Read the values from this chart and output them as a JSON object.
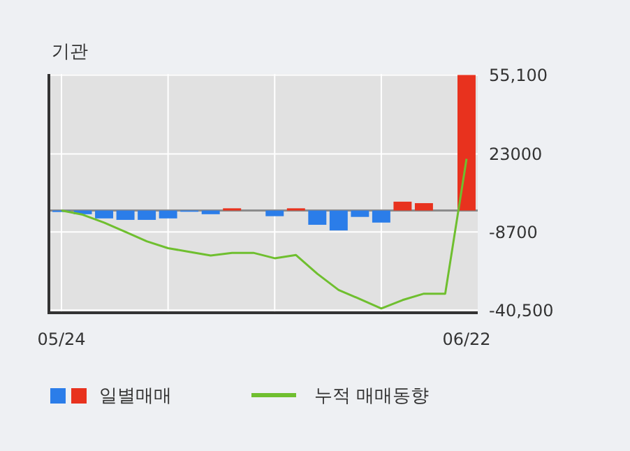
{
  "chart_data": {
    "type": "bar",
    "title": "기관",
    "categories": [
      "05/24",
      null,
      null,
      null,
      null,
      null,
      null,
      null,
      null,
      null,
      null,
      null,
      null,
      null,
      null,
      null,
      null,
      null,
      null,
      "06/22"
    ],
    "series": [
      {
        "name": "일별매매",
        "colors": [
          "#2b7de9",
          "#2b7de9",
          "#2b7de9",
          "#2b7de9",
          "#2b7de9",
          "#2b7de9",
          "#2b7de9",
          "#2b7de9",
          "#e8321e",
          "#2b7de9",
          "#2b7de9",
          "#e8321e",
          "#2b7de9",
          "#2b7de9",
          "#2b7de9",
          "#2b7de9",
          "#e8321e",
          "#e8321e",
          "#2b7de9",
          "#e8321e"
        ],
        "values": [
          -600,
          -1500,
          -3200,
          -3800,
          -3800,
          -3200,
          -500,
          -1500,
          900,
          0,
          -2300,
          900,
          -5800,
          -8100,
          -2600,
          -4900,
          3600,
          3000,
          0,
          55100
        ]
      },
      {
        "name": "누적 매매동향",
        "type": "line",
        "color": "#6fbf2f",
        "values": [
          0,
          -1700,
          -4900,
          -8700,
          -12500,
          -15300,
          -16800,
          -18300,
          -17200,
          -17200,
          -19400,
          -18100,
          -25700,
          -32300,
          -36000,
          -39800,
          -36400,
          -33800,
          -33800,
          21000
        ]
      }
    ],
    "ylim": [
      -41000,
      55500
    ],
    "yticks": [
      {
        "value": 55100,
        "label": "55,100"
      },
      23000,
      {
        "value": -8700,
        "label": "-8700"
      },
      {
        "value": -40500,
        "label": "-40,500"
      }
    ],
    "grid": true,
    "ref_lines": [
      {
        "axis": "y",
        "value": 0,
        "color": "#8c8c8c"
      }
    ],
    "legend": "bottom"
  }
}
